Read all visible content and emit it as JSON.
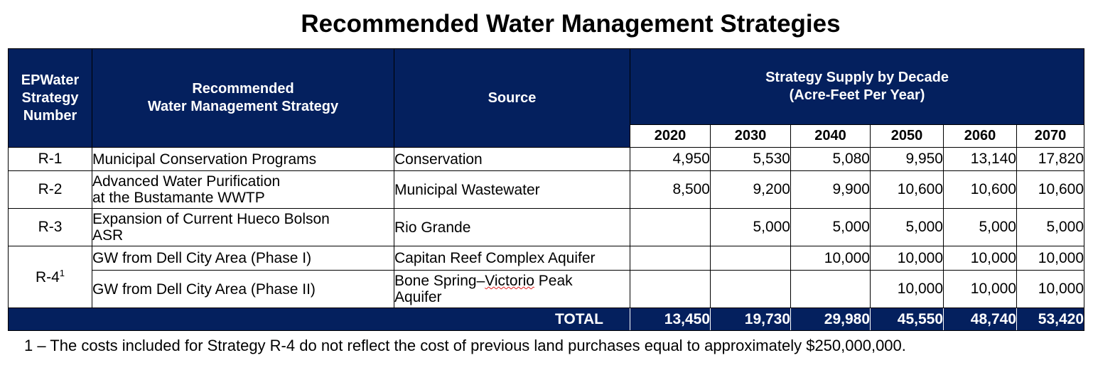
{
  "title": "Recommended Water Management Strategies",
  "headers": {
    "number": [
      "EPWater",
      "Strategy",
      "Number"
    ],
    "strategy": [
      "Recommended",
      "Water Management Strategy"
    ],
    "source": "Source",
    "supply": [
      "Strategy Supply by Decade",
      "(Acre-Feet Per Year)"
    ],
    "years": [
      "2020",
      "2030",
      "2040",
      "2050",
      "2060",
      "2070"
    ]
  },
  "rows": [
    {
      "number": "R-1",
      "strategy": [
        "Municipal Conservation Programs"
      ],
      "source": [
        "Conservation"
      ],
      "values": [
        "4,950",
        "5,530",
        "5,080",
        "9,950",
        "13,140",
        "17,820"
      ]
    },
    {
      "number": "R-2",
      "strategy": [
        "Advanced Water Purification",
        "at the Bustamante WWTP"
      ],
      "source": [
        "Municipal Wastewater"
      ],
      "values": [
        "8,500",
        "9,200",
        "9,900",
        "10,600",
        "10,600",
        "10,600"
      ]
    },
    {
      "number": "R-3",
      "strategy": [
        "Expansion of Current Hueco Bolson",
        "ASR"
      ],
      "source": [
        "Rio Grande"
      ],
      "values": [
        "",
        "5,000",
        "5,000",
        "5,000",
        "5,000",
        "5,000"
      ]
    }
  ],
  "r4": {
    "number": "R-4",
    "footnote_mark": "1",
    "sub": [
      {
        "strategy": "GW from Dell City Area (Phase I)",
        "source": [
          "Capitan Reef Complex Aquifer"
        ],
        "values": [
          "",
          "",
          "10,000",
          "10,000",
          "10,000",
          "10,000"
        ]
      },
      {
        "strategy": "GW from Dell City Area (Phase II)",
        "source_pre": "Bone Spring–",
        "source_mark": "Victorio",
        "source_post": " Peak",
        "source_line2": "Aquifer",
        "values": [
          "",
          "",
          "",
          "10,000",
          "10,000",
          "10,000"
        ]
      }
    ]
  },
  "total": {
    "label": "TOTAL",
    "values": [
      "13,450",
      "19,730",
      "29,980",
      "45,550",
      "48,740",
      "53,420"
    ]
  },
  "footnote": "1 – The costs included for Strategy R-4 do not reflect the cost of previous land purchases equal to approximately $250,000,000.",
  "colors": {
    "header_bg": "#04205e",
    "header_text": "#ffffff",
    "spell_mark": "#e02020"
  }
}
